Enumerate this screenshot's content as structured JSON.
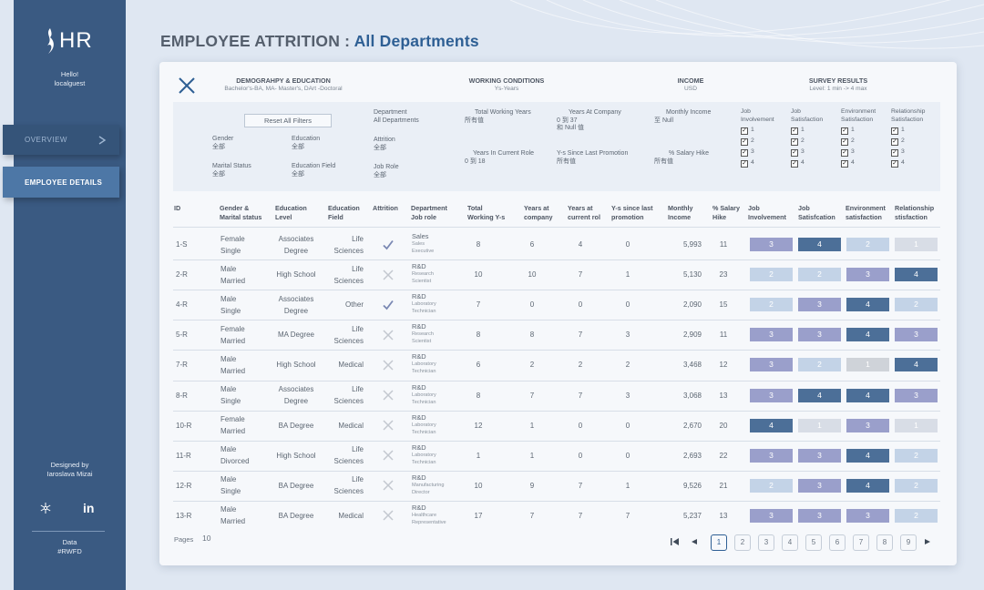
{
  "app": {
    "logo": "HR",
    "greeting": [
      "Hello!",
      "localguest"
    ],
    "designed": [
      "Designed by",
      "Iaroslava Mizai"
    ],
    "data_credit": [
      "Data",
      "#RWFD"
    ]
  },
  "nav": {
    "overview": "OVERVIEW",
    "details": "EMPLOYEE DETAILS"
  },
  "title": {
    "main": "EMPLOYEE ATTRITION : ",
    "accent": "All Departments"
  },
  "sections": {
    "demography": {
      "title": "DEMOGRAHPY & EDUCATION",
      "subtitle": "Bachelor's-BA, MA- Master's, DArt -Doctoral"
    },
    "working": {
      "title": "WORKING CONDITIONS",
      "subtitle": "Ys-Years"
    },
    "income": {
      "title": "INCOME",
      "subtitle": "USD"
    },
    "survey": {
      "title": "SURVEY  RESULTS",
      "subtitle": "Level:  1 min  -> 4 max"
    }
  },
  "filters": {
    "reset": "Reset All Filters",
    "gender": {
      "label": "Gender",
      "value": "全部"
    },
    "education": {
      "label": "Education",
      "value": "全部"
    },
    "marital": {
      "label": "Marital Status",
      "value": "全部"
    },
    "edu_field": {
      "label": "Education Field",
      "value": "全部"
    },
    "department": {
      "label": "Department",
      "value": "All Departments"
    },
    "attrition": {
      "label": "Attrition",
      "value": "全部"
    },
    "job_role": {
      "label": "Job Role",
      "value": "全部"
    },
    "total_years": {
      "label": "Total Working Years",
      "value": "所有值"
    },
    "years_company": {
      "label": "Years At Company",
      "value1": "0 到 37",
      "value2": "和 Null 值"
    },
    "years_role": {
      "label": "Years In Current Role",
      "value": "0 到 18"
    },
    "since_promo": {
      "label": "Y-s Since Last Promotion",
      "value": "所有值"
    },
    "monthly_income": {
      "label": "Monthly Income",
      "value": "至 Null"
    },
    "salary_hike": {
      "label": "% Salary Hike",
      "value": "所有值"
    },
    "survey_cols": [
      {
        "l1": "Job",
        "l2": "Involvement"
      },
      {
        "l1": "Job",
        "l2": "Satisfaction"
      },
      {
        "l1": "Environment",
        "l2": "Satisfaction"
      },
      {
        "l1": "Relationship",
        "l2": "Satisfaction"
      }
    ],
    "levels": [
      "1",
      "2",
      "3",
      "4"
    ],
    "check": "✓"
  },
  "headers": {
    "id": "ID",
    "gm": [
      "Gender &",
      "Marital status"
    ],
    "edu": [
      "Education",
      "Level"
    ],
    "field": [
      "Education",
      "Field"
    ],
    "att": [
      "Attrition",
      ""
    ],
    "dept": [
      "Department",
      "Job role"
    ],
    "twy": [
      "Total",
      "Working Y-s"
    ],
    "yac": [
      "Years at",
      "company"
    ],
    "ycr": [
      "Years at",
      "current rol"
    ],
    "ysp": [
      "Y-s since last",
      "promotion"
    ],
    "mi": [
      "Monthly",
      "Income"
    ],
    "sh": [
      "% Salary",
      "Hike"
    ],
    "ji": [
      "Job",
      "Involvement"
    ],
    "js": [
      "Job",
      "Satisfcation"
    ],
    "es": [
      "Environment",
      "satisfaction"
    ],
    "rs": [
      "Relationship",
      "stisfaction"
    ]
  },
  "rows": [
    {
      "id": "1-S",
      "gender": "Female",
      "marital": "Single",
      "edu": [
        "Associates",
        "Degree"
      ],
      "field": [
        "Life",
        "Sciences"
      ],
      "attr": true,
      "dept": "Sales",
      "role": [
        "Sales",
        "Executive"
      ],
      "twy": "8",
      "yac": "6",
      "ycr": "4",
      "ysp": "0",
      "mi": "5,993",
      "sh": "11",
      "s": [
        "3",
        "4",
        "2",
        "1"
      ]
    },
    {
      "id": "2-R",
      "gender": "Male",
      "marital": "Married",
      "edu": [
        "High School"
      ],
      "field": [
        "Life",
        "Sciences"
      ],
      "attr": false,
      "dept": "R&D",
      "role": [
        "Research",
        "Scientist"
      ],
      "twy": "10",
      "yac": "10",
      "ycr": "7",
      "ysp": "1",
      "mi": "5,130",
      "sh": "23",
      "s": [
        "2",
        "2",
        "3",
        "4"
      ]
    },
    {
      "id": "4-R",
      "gender": "Male",
      "marital": "Single",
      "edu": [
        "Associates",
        "Degree"
      ],
      "field": [
        "Other"
      ],
      "attr": true,
      "dept": "R&D",
      "role": [
        "Laboratory",
        "Technician"
      ],
      "twy": "7",
      "yac": "0",
      "ycr": "0",
      "ysp": "0",
      "mi": "2,090",
      "sh": "15",
      "s": [
        "2",
        "3",
        "4",
        "2"
      ]
    },
    {
      "id": "5-R",
      "gender": "Female",
      "marital": "Married",
      "edu": [
        "MA Degree"
      ],
      "field": [
        "Life",
        "Sciences"
      ],
      "attr": false,
      "dept": "R&D",
      "role": [
        "Research",
        "Scientist"
      ],
      "twy": "8",
      "yac": "8",
      "ycr": "7",
      "ysp": "3",
      "mi": "2,909",
      "sh": "11",
      "s": [
        "3",
        "3",
        "4",
        "3"
      ]
    },
    {
      "id": "7-R",
      "gender": "Male",
      "marital": "Married",
      "edu": [
        "High School"
      ],
      "field": [
        "Medical"
      ],
      "attr": false,
      "dept": "R&D",
      "role": [
        "Laboratory",
        "Technician"
      ],
      "twy": "6",
      "yac": "2",
      "ycr": "2",
      "ysp": "2",
      "mi": "3,468",
      "sh": "12",
      "s": [
        "3",
        "2",
        "1",
        "4"
      ]
    },
    {
      "id": "8-R",
      "gender": "Male",
      "marital": "Single",
      "edu": [
        "Associates",
        "Degree"
      ],
      "field": [
        "Life",
        "Sciences"
      ],
      "attr": false,
      "dept": "R&D",
      "role": [
        "Laboratory",
        "Technician"
      ],
      "twy": "8",
      "yac": "7",
      "ycr": "7",
      "ysp": "3",
      "mi": "3,068",
      "sh": "13",
      "s": [
        "3",
        "4",
        "4",
        "3"
      ]
    },
    {
      "id": "10-R",
      "gender": "Female",
      "marital": "Married",
      "edu": [
        "BA Degree"
      ],
      "field": [
        "Medical"
      ],
      "attr": false,
      "dept": "R&D",
      "role": [
        "Laboratory",
        "Technician"
      ],
      "twy": "12",
      "yac": "1",
      "ycr": "0",
      "ysp": "0",
      "mi": "2,670",
      "sh": "20",
      "s": [
        "4",
        "1",
        "3",
        "1"
      ]
    },
    {
      "id": "11-R",
      "gender": "Male",
      "marital": "Divorced",
      "edu": [
        "High School"
      ],
      "field": [
        "Life",
        "Sciences"
      ],
      "attr": false,
      "dept": "R&D",
      "role": [
        "Laboratory",
        "Technician"
      ],
      "twy": "1",
      "yac": "1",
      "ycr": "0",
      "ysp": "0",
      "mi": "2,693",
      "sh": "22",
      "s": [
        "3",
        "3",
        "4",
        "2"
      ]
    },
    {
      "id": "12-R",
      "gender": "Male",
      "marital": "Single",
      "edu": [
        "BA Degree"
      ],
      "field": [
        "Life",
        "Sciences"
      ],
      "attr": false,
      "dept": "R&D",
      "role": [
        "Manufacturing",
        "Director"
      ],
      "twy": "10",
      "yac": "9",
      "ycr": "7",
      "ysp": "1",
      "mi": "9,526",
      "sh": "21",
      "s": [
        "2",
        "3",
        "4",
        "2"
      ]
    },
    {
      "id": "13-R",
      "gender": "Male",
      "marital": "Married",
      "edu": [
        "BA Degree"
      ],
      "field": [
        "Medical"
      ],
      "attr": false,
      "dept": "R&D",
      "role": [
        "Healthcare",
        "Representative"
      ],
      "twy": "17",
      "yac": "7",
      "ycr": "7",
      "ysp": "7",
      "mi": "5,237",
      "sh": "13",
      "s": [
        "3",
        "3",
        "3",
        "2"
      ]
    }
  ],
  "pagination": {
    "label": "Pages",
    "count": "10",
    "pages": [
      "1",
      "2",
      "3",
      "4",
      "5",
      "6",
      "7",
      "8",
      "9"
    ],
    "current": "1"
  },
  "colors": {
    "sidebar": "#3a5a82",
    "accent": "#2e5f94",
    "score": {
      "ji": {
        "2": "#c3d3e7",
        "3": "#9a9fcb",
        "4": "#4c6f98"
      },
      "js": {
        "1": "#d8dde6",
        "2": "#c3d3e7",
        "3": "#9a9fcb",
        "4": "#4c6f98"
      },
      "es": {
        "1": "#cfd3d9",
        "2": "#c3d3e7",
        "3": "#9a9fcb",
        "4": "#4c6f98"
      },
      "rs": {
        "1": "#d8dde6",
        "2": "#c3d3e7",
        "3": "#9a9fcb",
        "4": "#4c6f98"
      }
    }
  }
}
